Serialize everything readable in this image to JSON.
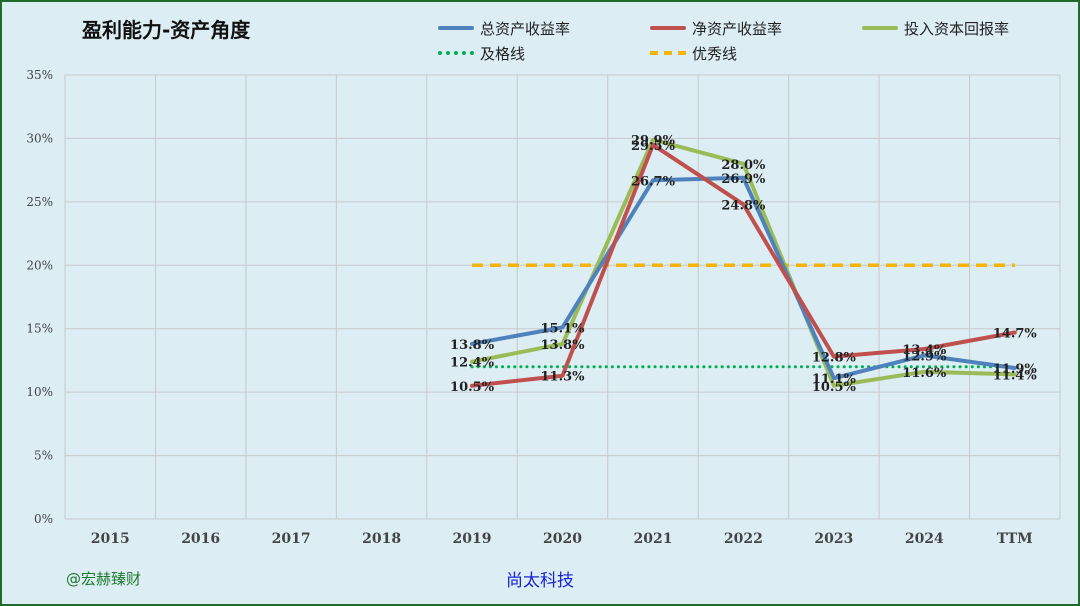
{
  "chart_data": {
    "type": "line",
    "title": "盈利能力-资产角度",
    "categories": [
      "2015",
      "2016",
      "2017",
      "2018",
      "2019",
      "2020",
      "2021",
      "2022",
      "2023",
      "2024",
      "TTM"
    ],
    "y_ticks": [
      "0%",
      "5%",
      "10%",
      "15%",
      "20%",
      "25%",
      "30%",
      "35%"
    ],
    "ylim": [
      0,
      35
    ],
    "grid": true,
    "legend_position": "top-right",
    "series": [
      {
        "name": "总资产收益率",
        "color": "#4f81bd",
        "style": "solid",
        "values": [
          null,
          null,
          null,
          null,
          13.8,
          15.1,
          26.7,
          26.9,
          11.1,
          12.9,
          11.9
        ],
        "labels": [
          "",
          "",
          "",
          "",
          "13.8%",
          "15.1%",
          "26.7%",
          "26.9%",
          "11.1%",
          "12.9%",
          "11.9%"
        ]
      },
      {
        "name": "净资产收益率",
        "color": "#c0504d",
        "style": "solid",
        "values": [
          null,
          null,
          null,
          null,
          10.5,
          11.3,
          29.5,
          24.8,
          12.8,
          13.4,
          14.7
        ],
        "labels": [
          "",
          "",
          "",
          "",
          "10.5%",
          "11.3%",
          "29.5%",
          "24.8%",
          "12.8%",
          "13.4%",
          "14.7%"
        ]
      },
      {
        "name": "投入资本回报率",
        "color": "#9bbb59",
        "style": "solid",
        "values": [
          null,
          null,
          null,
          null,
          12.4,
          13.8,
          29.9,
          28.0,
          10.5,
          11.6,
          11.4
        ],
        "labels": [
          "",
          "",
          "",
          "",
          "12.4%",
          "13.8%",
          "29.9%",
          "28.0%",
          "10.5%",
          "11.6%",
          "11.4%"
        ]
      },
      {
        "name": "及格线",
        "color": "#00b050",
        "style": "dotted",
        "values": [
          null,
          null,
          null,
          null,
          12,
          12,
          12,
          12,
          12,
          12,
          12
        ]
      },
      {
        "name": "优秀线",
        "color": "#f4b400",
        "style": "dashed",
        "values": [
          null,
          null,
          null,
          null,
          20,
          20,
          20,
          20,
          20,
          20,
          20
        ]
      }
    ]
  },
  "footer": {
    "watermark": "@宏赫臻财",
    "source": "尚太科技"
  }
}
